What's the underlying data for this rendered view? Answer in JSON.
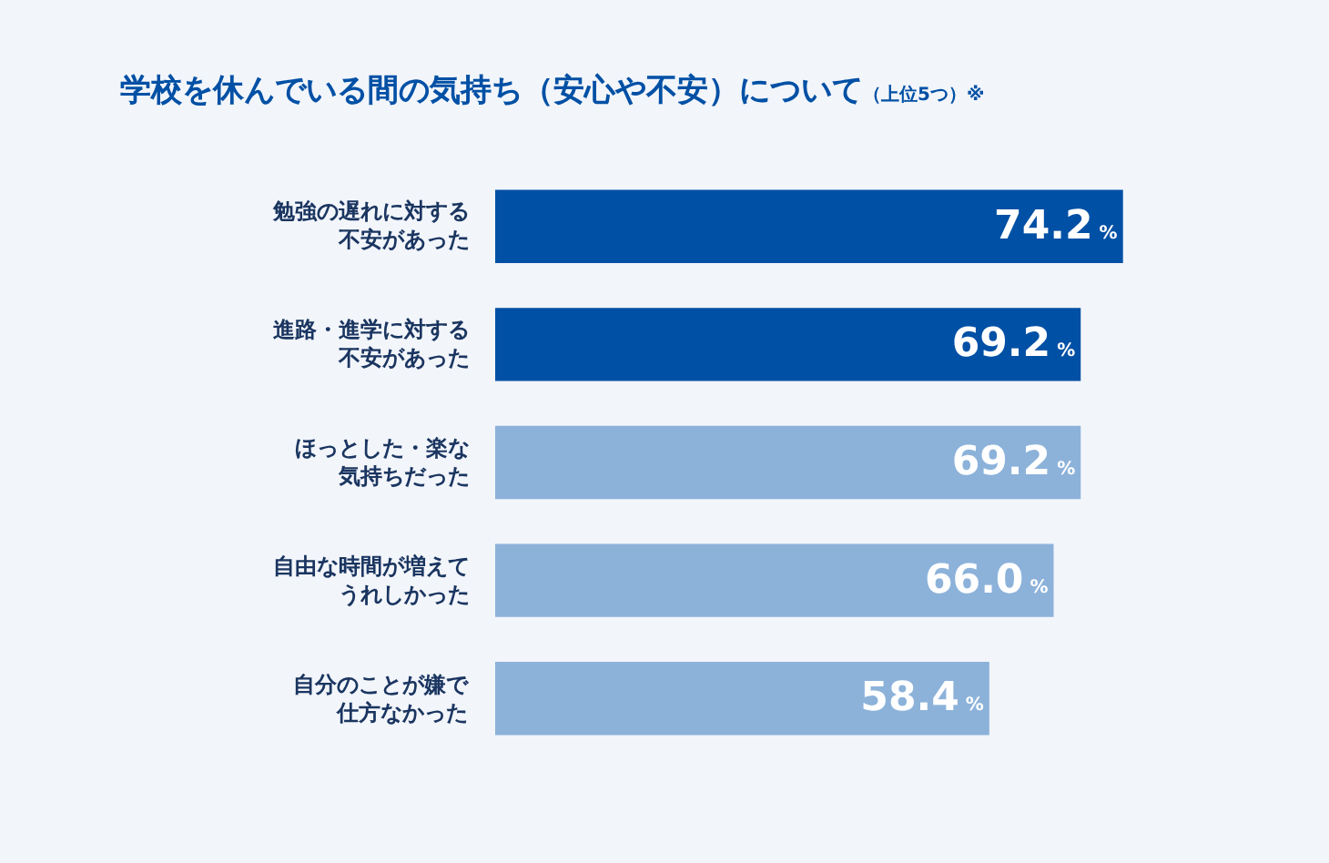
{
  "chart_data": {
    "type": "bar",
    "orientation": "horizontal",
    "title": "学校を休んでいる間の気持ち（安心や不安）について",
    "subtitle": "（上位5つ）※",
    "categories": [
      "勉強の遅れに対する不安があった",
      "進路・進学に対する不安があった",
      "ほっとした・楽な気持ちだった",
      "自由な時間が増えてうれしかった",
      "自分のことが嫌で仕方なかった"
    ],
    "values": [
      74.2,
      69.2,
      69.2,
      66.0,
      58.4
    ],
    "value_labels": [
      "74.2%",
      "69.2%",
      "69.2%",
      "66.0%",
      "58.4%"
    ],
    "colors": [
      "#0050a5",
      "#0050a5",
      "#8cb2da",
      "#8cb2da",
      "#8cb2da"
    ],
    "legend": false
  }
}
